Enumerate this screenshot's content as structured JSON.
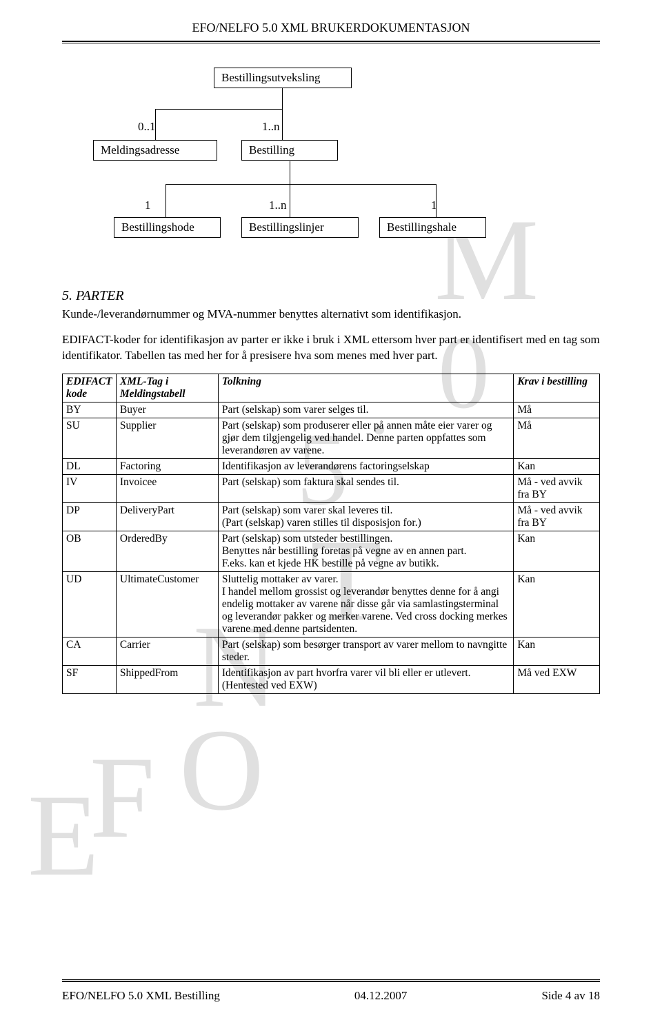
{
  "header": {
    "title": "EFO/NELFO 5.0 XML BRUKERDOKUMENTASJON"
  },
  "diagram": {
    "root": "Bestillingsutveksling",
    "level2_left_card": "0..1",
    "level2_left": "Meldingsadresse",
    "level2_right_card": "1..n",
    "level2_right": "Bestilling",
    "level3_a_card": "1",
    "level3_a": "Bestillingshode",
    "level3_b_card": "1..n",
    "level3_b": "Bestillingslinjer",
    "level3_c_card": "1",
    "level3_c": "Bestillingshale"
  },
  "section": {
    "title": "5.    PARTER",
    "p1": "Kunde-/leverandørnummer og MVA-nummer benyttes alternativt som identifikasjon.",
    "p2": "EDIFACT-koder for identifikasjon av parter er ikke i bruk i XML ettersom hver part er identifisert med en tag som identifikator. Tabellen tas med her for å presisere hva som menes med hver part."
  },
  "table": {
    "headers": {
      "c1": "EDIFACT kode",
      "c2": "XML-Tag i Meldingstabell",
      "c3": "Tolkning",
      "c4": "Krav i bestilling"
    },
    "rows": [
      {
        "c1": "BY",
        "c2": "Buyer",
        "c3": "Part (selskap) som varer selges til.",
        "c4": "Må"
      },
      {
        "c1": "SU",
        "c2": "Supplier",
        "c3": "Part (selskap) som produserer eller på annen måte eier varer og gjør dem tilgjengelig ved handel. Denne parten oppfattes som leverandøren av varene.",
        "c4": "Må"
      },
      {
        "c1": "DL",
        "c2": "Factoring",
        "c3": "Identifikasjon av leverandørens factoringselskap",
        "c4": "Kan"
      },
      {
        "c1": "IV",
        "c2": "Invoicee",
        "c3": "Part (selskap) som faktura skal sendes til.",
        "c4": "Må - ved avvik fra BY"
      },
      {
        "c1": "DP",
        "c2": "DeliveryPart",
        "c3": "Part (selskap) som varer skal leveres til.\n(Part (selskap) varen stilles til disposisjon for.)",
        "c4": "Må - ved avvik fra BY"
      },
      {
        "c1": "OB",
        "c2": "OrderedBy",
        "c3": "Part (selskap) som utsteder bestillingen.\nBenyttes når bestilling foretas på vegne av en annen part.\nF.eks. kan et kjede HK bestille på vegne av butikk.",
        "c4": "Kan"
      },
      {
        "c1": "UD",
        "c2": "UltimateCustomer",
        "c3": "Sluttelig mottaker av varer.\nI handel mellom grossist og leverandør benyttes denne for å angi endelig mottaker av varene når disse går via samlastingsterminal og leverandør pakker og merker varene. Ved cross docking merkes varene med denne partsidenten.",
        "c4": "Kan"
      },
      {
        "c1": "CA",
        "c2": "Carrier",
        "c3": "Part (selskap) som besørger transport av varer mellom to navngitte steder.",
        "c4": "Kan"
      },
      {
        "c1": "SF",
        "c2": "ShippedFrom",
        "c3": "Identifikasjon av part hvorfra varer vil bli eller er utlevert.\n(Hentested ved EXW)",
        "c4": "Må ved EXW"
      }
    ]
  },
  "footer": {
    "left": "EFO/NELFO 5.0 XML Bestilling",
    "center": "04.12.2007",
    "right": "Side 4 av 18"
  },
  "watermark": {
    "m": "M",
    "dot1": ".",
    "five": "5",
    "dot2": ".",
    "zero": "0",
    "e": "E",
    "f": "F",
    "o": "O",
    "n": "N",
    "t": "T"
  }
}
